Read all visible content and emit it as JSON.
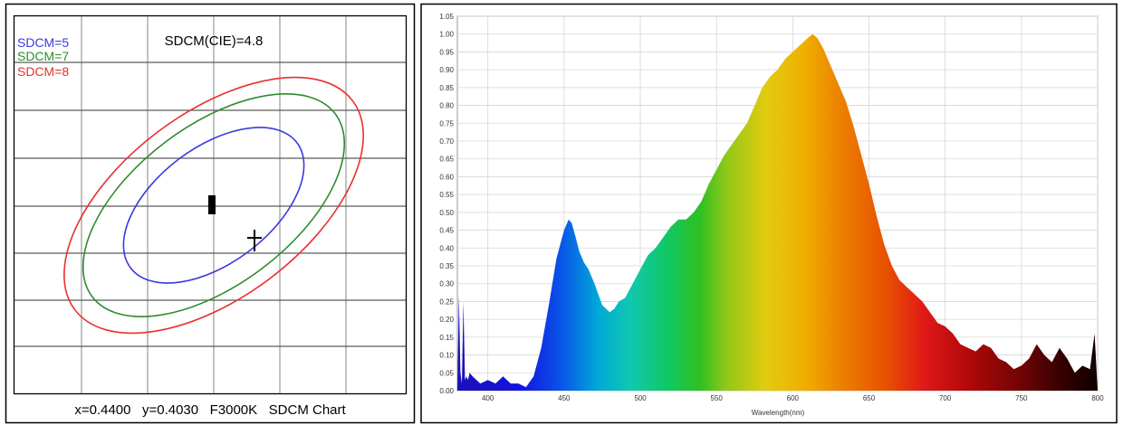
{
  "sdcm_panel": {
    "caption": "x=0.4400   y=0.4030   F3000K   SDCM Chart"
  },
  "chart_data": [
    {
      "type": "scatter",
      "title": "SDCM(CIE)=4.8",
      "grid": true,
      "legend_position": "top-left",
      "colors": {
        "sdcm5": "#3a3ae0",
        "sdcm7": "#2e8b2e",
        "sdcm8": "#e8302e"
      },
      "ellipses": [
        {
          "name": "SDCM=5",
          "color": "#3a3ae0",
          "relative_size": 5
        },
        {
          "name": "SDCM=7",
          "color": "#2e8b2e",
          "relative_size": 7
        },
        {
          "name": "SDCM=8",
          "color": "#e8302e",
          "relative_size": 8
        }
      ],
      "markers": [
        {
          "kind": "target-center",
          "shape": "filled-rectangle"
        },
        {
          "kind": "measured-point",
          "shape": "cross"
        }
      ],
      "measured": {
        "x": 0.44,
        "y": 0.403,
        "cct_label": "F3000K"
      }
    },
    {
      "type": "area",
      "title": "",
      "xlabel": "Wavelength(nm)",
      "ylabel": "",
      "xlim": [
        380,
        800
      ],
      "ylim": [
        0,
        1.05
      ],
      "x_ticks": [
        400,
        450,
        500,
        550,
        600,
        650,
        700,
        750,
        800
      ],
      "y_ticks": [
        0.0,
        0.05,
        0.1,
        0.15,
        0.2,
        0.25,
        0.3,
        0.35,
        0.4,
        0.45,
        0.5,
        0.55,
        0.6,
        0.65,
        0.7,
        0.75,
        0.8,
        0.85,
        0.9,
        0.95,
        1.0,
        1.05
      ],
      "grid": true,
      "fill": "visible-spectrum gradient",
      "series": [
        {
          "x": [
            380,
            381,
            382,
            383,
            384,
            385,
            386,
            387,
            388,
            390,
            395,
            400,
            405,
            410,
            415,
            420,
            425,
            430,
            435,
            440,
            445,
            450,
            453,
            455,
            457,
            460,
            463,
            466,
            470,
            475,
            480,
            483,
            486,
            490,
            495,
            500,
            505,
            510,
            515,
            520,
            525,
            530,
            535,
            540,
            545,
            550,
            555,
            560,
            565,
            570,
            575,
            580,
            585,
            590,
            595,
            600,
            605,
            610,
            613,
            616,
            620,
            625,
            630,
            635,
            640,
            645,
            650,
            655,
            660,
            665,
            670,
            675,
            680,
            685,
            690,
            695,
            700,
            705,
            710,
            715,
            720,
            725,
            730,
            735,
            740,
            745,
            750,
            755,
            760,
            765,
            770,
            775,
            780,
            785,
            790,
            795,
            798,
            800
          ],
          "y": [
            0.0,
            0.27,
            0.05,
            0.02,
            0.25,
            0.03,
            0.04,
            0.03,
            0.05,
            0.04,
            0.02,
            0.03,
            0.02,
            0.04,
            0.02,
            0.02,
            0.01,
            0.04,
            0.12,
            0.24,
            0.37,
            0.45,
            0.48,
            0.47,
            0.44,
            0.39,
            0.36,
            0.34,
            0.3,
            0.24,
            0.22,
            0.23,
            0.25,
            0.26,
            0.3,
            0.34,
            0.38,
            0.4,
            0.43,
            0.46,
            0.48,
            0.48,
            0.5,
            0.53,
            0.58,
            0.62,
            0.66,
            0.69,
            0.72,
            0.75,
            0.8,
            0.85,
            0.88,
            0.9,
            0.93,
            0.95,
            0.97,
            0.99,
            1.0,
            0.99,
            0.96,
            0.91,
            0.86,
            0.81,
            0.74,
            0.66,
            0.58,
            0.49,
            0.41,
            0.35,
            0.31,
            0.29,
            0.27,
            0.25,
            0.22,
            0.19,
            0.18,
            0.16,
            0.13,
            0.12,
            0.11,
            0.13,
            0.12,
            0.09,
            0.08,
            0.06,
            0.07,
            0.09,
            0.13,
            0.1,
            0.08,
            0.12,
            0.09,
            0.05,
            0.07,
            0.06,
            0.16,
            0.0
          ]
        }
      ]
    }
  ]
}
